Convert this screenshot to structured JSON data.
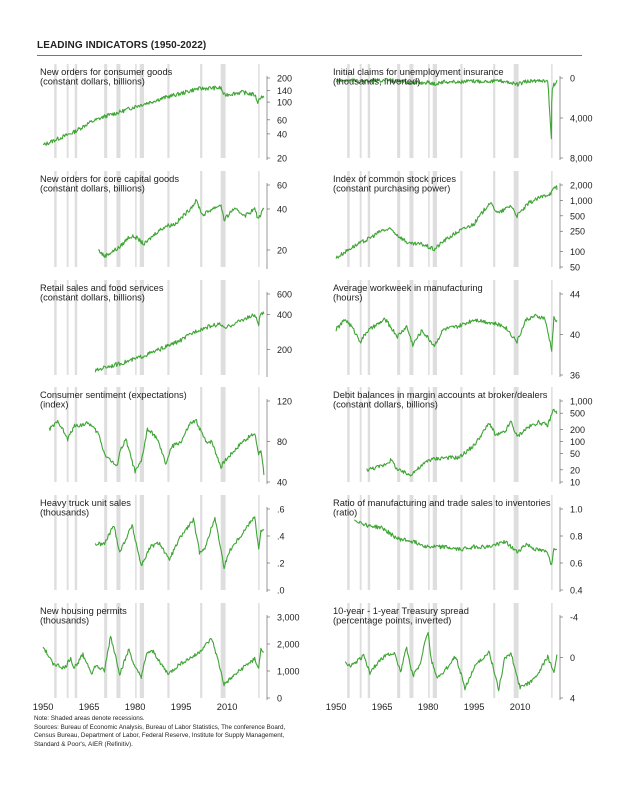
{
  "title": "LEADING INDICATORS (1950-2022)",
  "notes": [
    "Note: Shaded areas denote recessions.",
    "Sources: Bureau of Economic Analysis, Bureau of Labor Statistics, The conference Board,",
    "Census Bureau, Department of Labor, Federal Reserve, Institute for Supply Management,",
    "Standard & Poor's, AIER (Refinitiv)."
  ],
  "x_tick_labels": [
    "1950",
    "1965",
    "1980",
    "1995",
    "2010"
  ],
  "colors": {
    "line": "#3fa535",
    "recession": "#dedede",
    "axis": "#555555",
    "text": "#222222"
  },
  "recessions": [
    [
      1953.6,
      1954.4
    ],
    [
      1957.7,
      1958.3
    ],
    [
      1960.3,
      1961.1
    ],
    [
      1969.9,
      1970.9
    ],
    [
      1973.9,
      1975.2
    ],
    [
      1980.0,
      1980.5
    ],
    [
      1981.5,
      1982.9
    ],
    [
      1990.5,
      1991.2
    ],
    [
      2001.2,
      2001.9
    ],
    [
      2007.9,
      2009.5
    ],
    [
      2020.1,
      2020.4
    ]
  ],
  "chart_data": [
    {
      "type": "line",
      "title": "New orders for consumer goods",
      "subtitle": "(constant dollars, billions)",
      "scale": "log",
      "ylim": [
        20,
        200
      ],
      "ticks": [
        20,
        40,
        60,
        100,
        140,
        200
      ],
      "tick_labels": [
        "20",
        "40",
        "60",
        "100",
        "140",
        "200"
      ],
      "x": [
        1950,
        1955,
        1960,
        1965,
        1970,
        1975,
        1980,
        1985,
        1990,
        1995,
        2000,
        2005,
        2008,
        2009,
        2012,
        2015,
        2019,
        2020,
        2021,
        2022
      ],
      "values": [
        29,
        35,
        42,
        55,
        66,
        75,
        88,
        100,
        115,
        128,
        146,
        150,
        150,
        122,
        128,
        133,
        123,
        100,
        118,
        114
      ]
    },
    {
      "type": "line",
      "title": "Initial claims for unemployment insurance",
      "subtitle": "(thousands, inverted)",
      "scale": "linear",
      "inverted": true,
      "ylim": [
        0,
        8000
      ],
      "ticks": [
        0,
        4000,
        8000
      ],
      "tick_labels": [
        "0",
        "4,000",
        "8,000"
      ],
      "x": [
        1950,
        1955,
        1960,
        1965,
        1970,
        1975,
        1980,
        1982,
        1985,
        1990,
        1995,
        2000,
        2005,
        2009,
        2012,
        2015,
        2019,
        2020.2,
        2020.3,
        2020.5,
        2021,
        2022
      ],
      "values": [
        300,
        250,
        350,
        220,
        300,
        500,
        450,
        600,
        380,
        400,
        330,
        300,
        320,
        650,
        370,
        280,
        220,
        6100,
        2500,
        1300,
        700,
        210
      ]
    },
    {
      "type": "line",
      "title": "New orders for core capital goods",
      "subtitle": "(constant dollars, billions)",
      "scale": "log",
      "ylim": [
        15,
        60
      ],
      "ticks": [
        20,
        40,
        60
      ],
      "tick_labels": [
        "20",
        "40",
        "60"
      ],
      "x": [
        1968,
        1970,
        1975,
        1978,
        1980,
        1983,
        1987,
        1990,
        1993,
        1997,
        2000,
        2002,
        2005,
        2008,
        2009,
        2012,
        2016,
        2019,
        2020,
        2022
      ],
      "values": [
        20,
        18,
        21,
        25,
        25,
        22,
        27,
        30,
        31,
        38,
        46,
        36,
        40,
        43,
        33,
        40,
        36,
        40,
        34,
        40
      ]
    },
    {
      "type": "line",
      "title": "Index of common stock prices",
      "subtitle": "(constant purchasing power)",
      "scale": "log",
      "ylim": [
        50,
        2000
      ],
      "ticks": [
        50,
        100,
        250,
        500,
        1000,
        2000
      ],
      "tick_labels": [
        "50",
        "100",
        "250",
        "500",
        "1,000",
        "2,000"
      ],
      "x": [
        1950,
        1955,
        1960,
        1965,
        1968,
        1970,
        1974,
        1978,
        1982,
        1985,
        1990,
        1995,
        2000,
        2003,
        2007,
        2009,
        2013,
        2016,
        2020,
        2021.9,
        2022
      ],
      "values": [
        75,
        120,
        170,
        260,
        270,
        210,
        140,
        140,
        110,
        160,
        250,
        350,
        900,
        560,
        800,
        500,
        900,
        1100,
        1400,
        1950,
        1600
      ]
    },
    {
      "type": "line",
      "title": "Retail sales and food services",
      "subtitle": "(constant dollars, billions)",
      "scale": "log",
      "ylim": [
        120,
        600
      ],
      "ticks": [
        200,
        400,
        600
      ],
      "tick_labels": [
        "200",
        "400",
        "600"
      ],
      "x": [
        1967,
        1970,
        1975,
        1980,
        1985,
        1990,
        1995,
        2000,
        2005,
        2008,
        2009,
        2012,
        2015,
        2019,
        2020.3,
        2021,
        2022
      ],
      "values": [
        130,
        140,
        150,
        165,
        185,
        210,
        240,
        290,
        320,
        330,
        300,
        330,
        360,
        395,
        330,
        410,
        405
      ]
    },
    {
      "type": "line",
      "title": "Average workweek in manufacturing",
      "subtitle": "(hours)",
      "scale": "linear",
      "ylim": [
        36,
        44
      ],
      "ticks": [
        36,
        40,
        44
      ],
      "tick_labels": [
        "36",
        "40",
        "44"
      ],
      "x": [
        1950,
        1953,
        1955,
        1958,
        1960,
        1965,
        1966,
        1970,
        1973,
        1975,
        1978,
        1982,
        1985,
        1990,
        1995,
        2000,
        2005,
        2009,
        2012,
        2015,
        2018,
        2020.3,
        2021,
        2022
      ],
      "values": [
        40.5,
        41.5,
        40.8,
        39.3,
        40.3,
        41.3,
        41.5,
        39.8,
        40.8,
        39.0,
        40.4,
        38.9,
        40.5,
        40.8,
        41.5,
        41.2,
        40.8,
        39.3,
        41.5,
        41.8,
        41.6,
        38.5,
        41.6,
        41.4
      ]
    },
    {
      "type": "line",
      "title": "Consumer sentiment (expectations)",
      "subtitle": "(index)",
      "scale": "linear",
      "ylim": [
        40,
        120
      ],
      "ticks": [
        40,
        80,
        120
      ],
      "tick_labels": [
        "40",
        "80",
        "120"
      ],
      "x": [
        1952,
        1955,
        1958,
        1960,
        1965,
        1968,
        1970,
        1974,
        1975,
        1977,
        1980,
        1982,
        1984,
        1987,
        1990,
        1992,
        1995,
        1998,
        2000,
        2003,
        2005,
        2008,
        2009,
        2012,
        2015,
        2019,
        2020.3,
        2021,
        2022
      ],
      "values": [
        92,
        100,
        82,
        95,
        98,
        88,
        68,
        55,
        70,
        82,
        50,
        60,
        92,
        84,
        58,
        75,
        80,
        98,
        100,
        80,
        80,
        55,
        60,
        70,
        80,
        88,
        68,
        72,
        47
      ]
    },
    {
      "type": "line",
      "title": "Debit balances in margin accounts at broker/dealers",
      "subtitle": "(constant dollars, billions)",
      "scale": "log",
      "ylim": [
        10,
        1000
      ],
      "ticks": [
        10,
        20,
        50,
        100,
        200,
        500,
        1000
      ],
      "tick_labels": [
        "10",
        "20",
        "50",
        "100",
        "200",
        "500",
        "1,000"
      ],
      "x": [
        1960,
        1965,
        1968,
        1970,
        1974,
        1978,
        1980,
        1985,
        1990,
        1995,
        2000,
        2002,
        2005,
        2007,
        2009,
        2012,
        2016,
        2019,
        2021,
        2022
      ],
      "values": [
        20,
        25,
        35,
        20,
        15,
        25,
        35,
        40,
        40,
        80,
        290,
        140,
        170,
        310,
        130,
        210,
        300,
        250,
        650,
        480
      ]
    },
    {
      "type": "line",
      "title": "Heavy truck unit sales",
      "subtitle": "(thousands)",
      "scale": "linear",
      "ylim": [
        0,
        0.6
      ],
      "ticks": [
        0,
        0.2,
        0.4,
        0.6
      ],
      "tick_labels": [
        ".0",
        ".2",
        ".4",
        ".6"
      ],
      "x": [
        1967,
        1970,
        1973,
        1975,
        1979,
        1982,
        1985,
        1988,
        1991,
        1995,
        1999,
        2001,
        2003,
        2006,
        2009,
        2011,
        2015,
        2019,
        2020.3,
        2021,
        2022
      ],
      "values": [
        0.34,
        0.34,
        0.48,
        0.28,
        0.48,
        0.18,
        0.32,
        0.35,
        0.22,
        0.4,
        0.52,
        0.28,
        0.32,
        0.54,
        0.17,
        0.3,
        0.42,
        0.55,
        0.3,
        0.43,
        0.45
      ]
    },
    {
      "type": "line",
      "title": "Ratio of manufacturing and trade sales to inventories",
      "subtitle": "(ratio)",
      "scale": "linear",
      "ylim": [
        0.4,
        1.0
      ],
      "ticks": [
        0.4,
        0.6,
        0.8,
        1.0
      ],
      "tick_labels": [
        "0.4",
        "0.6",
        "0.8",
        "1.0"
      ],
      "x": [
        1956,
        1960,
        1965,
        1970,
        1975,
        1980,
        1985,
        1990,
        1995,
        2000,
        2005,
        2009,
        2012,
        2015,
        2019,
        2020.3,
        2021,
        2022
      ],
      "values": [
        0.92,
        0.88,
        0.86,
        0.78,
        0.76,
        0.72,
        0.72,
        0.7,
        0.72,
        0.72,
        0.76,
        0.68,
        0.74,
        0.7,
        0.68,
        0.58,
        0.72,
        0.7
      ]
    },
    {
      "type": "line",
      "title": "New housing permits",
      "subtitle": "(thousands)",
      "scale": "linear",
      "ylim": [
        0,
        3000
      ],
      "ticks": [
        0,
        1000,
        2000,
        3000
      ],
      "tick_labels": [
        "0",
        "1,000",
        "2,000",
        "3,000"
      ],
      "x": [
        1950,
        1953,
        1957,
        1959,
        1960,
        1963,
        1966,
        1967,
        1970,
        1972,
        1975,
        1978,
        1980,
        1982,
        1984,
        1986,
        1990,
        1991,
        1995,
        2000,
        2005,
        2007,
        2009,
        2012,
        2016,
        2019,
        2020.3,
        2021,
        2022
      ],
      "values": [
        1900,
        1300,
        1100,
        1500,
        1100,
        1600,
        900,
        1200,
        1000,
        2300,
        900,
        1800,
        1100,
        800,
        1700,
        1700,
        1000,
        900,
        1300,
        1600,
        2200,
        1400,
        500,
        800,
        1200,
        1450,
        1100,
        1800,
        1700
      ]
    },
    {
      "type": "line",
      "title": "10-year - 1-year Treasury spread",
      "subtitle": "(percentage points, inverted)",
      "scale": "linear",
      "inverted": true,
      "ylim": [
        -4,
        4
      ],
      "ticks": [
        -4,
        0,
        4
      ],
      "tick_labels": [
        "-4",
        "0",
        "4"
      ],
      "x": [
        1953,
        1955,
        1959,
        1961,
        1963,
        1966,
        1969,
        1971,
        1973,
        1975,
        1977,
        1979,
        1980,
        1981,
        1983,
        1985,
        1989,
        1992,
        1995,
        1998,
        2000,
        2003,
        2005,
        2007,
        2010,
        2013,
        2016,
        2019,
        2021,
        2022
      ],
      "values": [
        0.5,
        0.8,
        -0.2,
        1.5,
        0.7,
        -0.2,
        -0.5,
        1.5,
        -1,
        1.8,
        1.0,
        -1.5,
        -2.6,
        0.2,
        2.0,
        1.5,
        -0.2,
        3.0,
        1.0,
        0,
        -0.5,
        3.2,
        0,
        -0.4,
        3.0,
        2.5,
        1.5,
        -0.1,
        1.5,
        -0.3
      ]
    }
  ]
}
